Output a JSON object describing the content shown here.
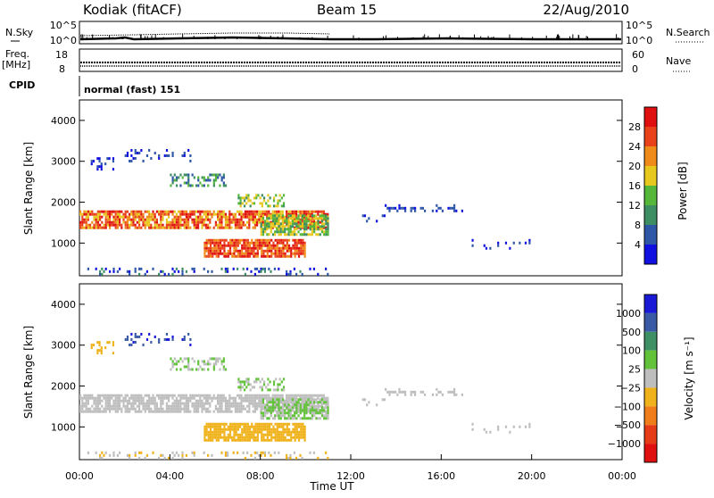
{
  "header": {
    "station": "Kodiak (fitACF)",
    "beam": "Beam 15",
    "date": "22/Aug/2010"
  },
  "noise_panel": {
    "left_label": "N.Sky",
    "right_label": "N.Search",
    "ticks_left": [
      "10^5",
      "10^0"
    ],
    "ticks_right": [
      "10^5",
      "10^0"
    ]
  },
  "freq_panel": {
    "left_label_1": "Freq.",
    "left_label_2": "[MHz]",
    "right_label": "Nave",
    "ticks_left": [
      "18",
      "8"
    ],
    "ticks_right": [
      "60",
      "0"
    ]
  },
  "cpid_panel": {
    "label": "CPID",
    "mode": "normal (fast) 151"
  },
  "chart_data": [
    {
      "type": "heatmap",
      "name": "power",
      "ylabel": "Slant Range [km]",
      "xlabel": "",
      "y_ticks": [
        "1000",
        "2000",
        "3000",
        "4000"
      ],
      "ylim": [
        200,
        4500
      ],
      "colorbar_label": "Power [dB]",
      "colorbar_ticks": [
        "4",
        "8",
        "12",
        "16",
        "20",
        "24",
        "28"
      ],
      "colorbar_colors": [
        "#1010e0",
        "#2e57a8",
        "#3d8f63",
        "#55b73a",
        "#e6c81f",
        "#ef8b1a",
        "#e9421a",
        "#e01010"
      ]
    },
    {
      "type": "heatmap",
      "name": "velocity",
      "ylabel": "Slant Range [km]",
      "xlabel": "Time UT",
      "x_ticks": [
        "00:00",
        "04:00",
        "08:00",
        "12:00",
        "16:00",
        "20:00",
        "00:00"
      ],
      "y_ticks": [
        "1000",
        "2000",
        "3000",
        "4000"
      ],
      "ylim": [
        200,
        4500
      ],
      "colorbar_label": "Velocity [m s⁻¹]",
      "colorbar_ticks": [
        "1000",
        "500",
        "100",
        "25",
        "−25",
        "−100",
        "−500",
        "−1000"
      ],
      "colorbar_colors": [
        "#1a1ad6",
        "#3b5aa6",
        "#3e8f63",
        "#62c23a",
        "#bebebe",
        "#f0b21a",
        "#ef7d19",
        "#e63b17",
        "#e01010"
      ]
    }
  ]
}
